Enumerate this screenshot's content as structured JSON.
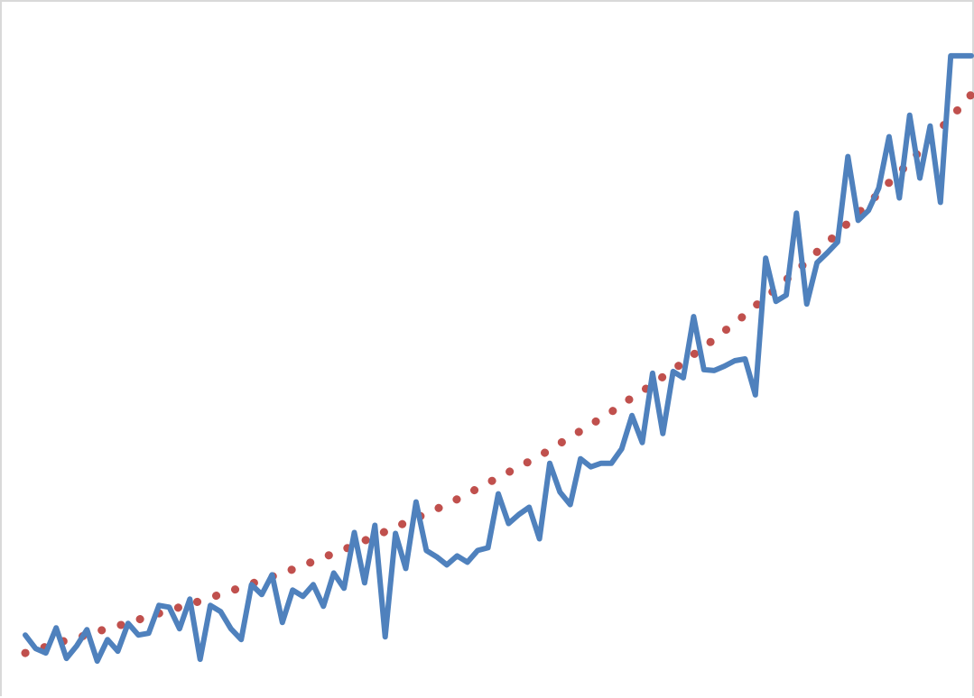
{
  "chart_data": {
    "type": "line",
    "title": "",
    "xlabel": "",
    "ylabel": "",
    "grid": false,
    "legend": "none",
    "x": [
      1,
      2,
      3,
      4,
      5,
      6,
      7,
      8,
      9,
      10,
      11,
      12,
      13,
      14,
      15,
      16,
      17,
      18,
      19,
      20,
      21,
      22,
      23,
      24,
      25,
      26,
      27,
      28,
      29,
      30,
      31,
      32,
      33,
      34,
      35,
      36,
      37,
      38,
      39,
      40,
      41,
      42,
      43,
      44,
      45,
      46,
      47,
      48,
      49,
      50,
      51,
      52,
      53,
      54,
      55,
      56,
      57,
      58,
      59,
      60,
      61,
      62,
      63,
      64,
      65,
      66,
      67,
      68,
      69,
      70,
      71,
      72,
      73,
      74,
      75,
      76,
      77,
      78,
      79,
      80,
      81,
      82,
      83,
      84,
      85,
      86,
      87,
      88,
      89,
      90,
      91,
      92,
      93
    ],
    "xlim": [
      1,
      93
    ],
    "ylim": [
      0,
      760
    ],
    "series": [
      {
        "style": "solid",
        "color": "#4f81bd",
        "values": [
          66,
          51,
          46,
          74,
          40,
          54,
          72,
          37,
          61,
          48,
          79,
          66,
          68,
          99,
          97,
          73,
          106,
          39,
          99,
          92,
          73,
          61,
          122,
          111,
          133,
          80,
          116,
          109,
          122,
          98,
          135,
          118,
          180,
          124,
          188,
          64,
          179,
          140,
          214,
          160,
          153,
          144,
          154,
          147,
          160,
          163,
          223,
          190,
          200,
          208,
          173,
          257,
          225,
          211,
          262,
          253,
          257,
          257,
          273,
          310,
          280,
          357,
          290,
          359,
          352,
          420,
          361,
          360,
          365,
          371,
          373,
          333,
          485,
          437,
          444,
          535,
          434,
          480,
          491,
          503,
          598,
          527,
          538,
          563,
          620,
          552,
          644,
          574,
          632,
          547,
          710,
          710,
          710
        ]
      },
      {
        "style": "dotted",
        "color": "#c0504d",
        "values": [
          46,
          49,
          53,
          57,
          60,
          63,
          66,
          70,
          73,
          76,
          80,
          83,
          87,
          90,
          93,
          97,
          100,
          104,
          108,
          111,
          115,
          119,
          123,
          127,
          131,
          135,
          139,
          143,
          148,
          152,
          157,
          161,
          166,
          171,
          176,
          181,
          186,
          191,
          196,
          201,
          206,
          212,
          217,
          223,
          229,
          235,
          241,
          247,
          253,
          259,
          265,
          272,
          279,
          286,
          293,
          300,
          307,
          314,
          322,
          330,
          337,
          345,
          353,
          361,
          369,
          378,
          386,
          395,
          404,
          413,
          422,
          432,
          441,
          451,
          461,
          471,
          481,
          492,
          502,
          513,
          524,
          535,
          546,
          557,
          569,
          580,
          592,
          604,
          616,
          629,
          641,
          654,
          667
        ]
      }
    ]
  }
}
